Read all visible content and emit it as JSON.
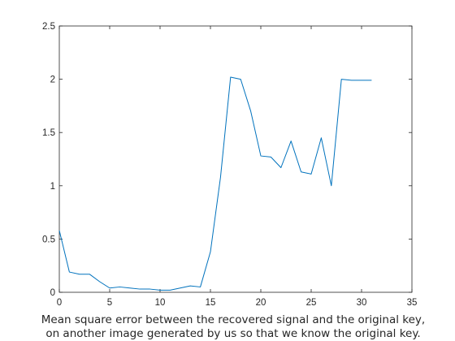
{
  "chart_data": {
    "type": "line",
    "title": "",
    "xlabel_lines": [
      "Mean square error between the recovered signal and the original key,",
      "on another image generated by us so that we know the original key."
    ],
    "ylabel": "",
    "xlim": [
      0,
      35
    ],
    "ylim": [
      0,
      2.5
    ],
    "x_ticks": [
      0,
      5,
      10,
      15,
      20,
      25,
      30,
      35
    ],
    "y_ticks": [
      0,
      0.5,
      1,
      1.5,
      2,
      2.5
    ],
    "x_tick_labels": [
      "0",
      "5",
      "10",
      "15",
      "20",
      "25",
      "30",
      "35"
    ],
    "y_tick_labels": [
      "0",
      "0.5",
      "1",
      "1.5",
      "2",
      "2.5"
    ],
    "grid": false,
    "line_color": "#0072bd",
    "series": [
      {
        "x": [
          0,
          1,
          2,
          3,
          4,
          5,
          6,
          7,
          8,
          9,
          10,
          11,
          12,
          13,
          14,
          15,
          16,
          17,
          18,
          19,
          20,
          21,
          22,
          23,
          24,
          25,
          26,
          27,
          28,
          29,
          30,
          31
        ],
        "y": [
          0.58,
          0.19,
          0.17,
          0.17,
          0.1,
          0.04,
          0.05,
          0.04,
          0.03,
          0.03,
          0.02,
          0.02,
          0.04,
          0.06,
          0.05,
          0.38,
          1.08,
          2.02,
          2.0,
          1.7,
          1.28,
          1.27,
          1.17,
          1.42,
          1.13,
          1.11,
          1.45,
          1.0,
          2.0,
          1.99,
          1.99,
          1.99
        ]
      }
    ]
  }
}
